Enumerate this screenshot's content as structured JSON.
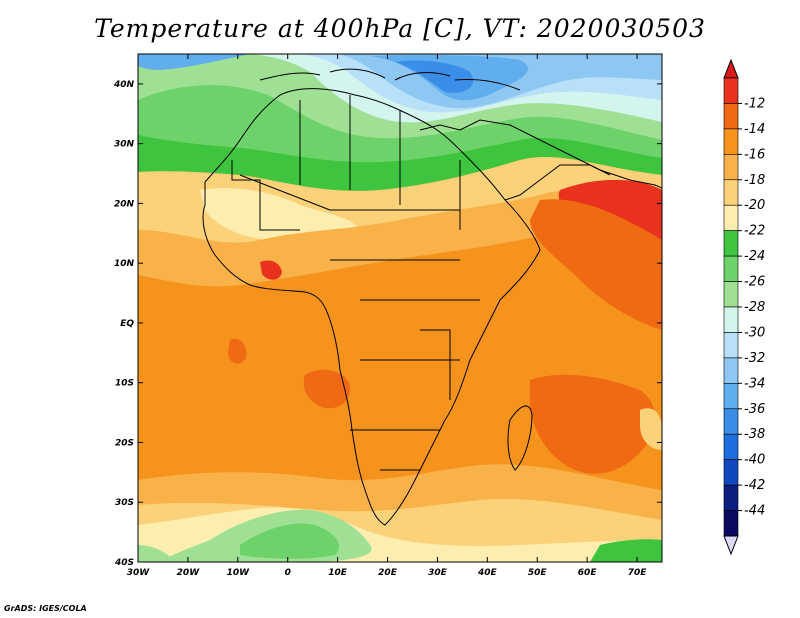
{
  "title": "Temperature at 400hPa [C], VT: 2020030503",
  "credit": "GrADS: IGES/COLA",
  "map": {
    "lat_labels": [
      "40N",
      "30N",
      "20N",
      "10N",
      "EQ",
      "10S",
      "20S",
      "30S",
      "40S"
    ],
    "lat_values": [
      40,
      30,
      20,
      10,
      0,
      -10,
      -20,
      -30,
      -40
    ],
    "lon_labels": [
      "30W",
      "20W",
      "10W",
      "0",
      "10E",
      "20E",
      "30E",
      "40E",
      "50E",
      "60E",
      "70E"
    ],
    "lon_values": [
      -30,
      -20,
      -10,
      0,
      10,
      20,
      30,
      40,
      50,
      60,
      70
    ],
    "lon_range": [
      -30,
      75
    ],
    "lat_range": [
      -40,
      45
    ]
  },
  "chart_data": {
    "type": "heatmap",
    "title": "Temperature at 400hPa [C], VT: 2020030503",
    "variable_unit": "C",
    "colorbar": {
      "labels": [
        "-12",
        "-14",
        "-16",
        "-18",
        "-20",
        "-22",
        "-24",
        "-26",
        "-28",
        "-30",
        "-32",
        "-34",
        "-36",
        "-38",
        "-40",
        "-42",
        "-44"
      ],
      "colors": [
        "#e8321e",
        "#ef6a12",
        "#f6931c",
        "#f9b24a",
        "#fbd27a",
        "#fdeeb0",
        "#3ec43e",
        "#6ed26a",
        "#9fe094",
        "#d4f4ee",
        "#b8e0f8",
        "#8ec8f2",
        "#60aeee",
        "#3a8ee8",
        "#1f6ee0",
        "#1048c0",
        "#0c1e80",
        "#0a0a60"
      ],
      "over_color": "#d81a1a",
      "under_color": "#ddd8f8"
    }
  }
}
